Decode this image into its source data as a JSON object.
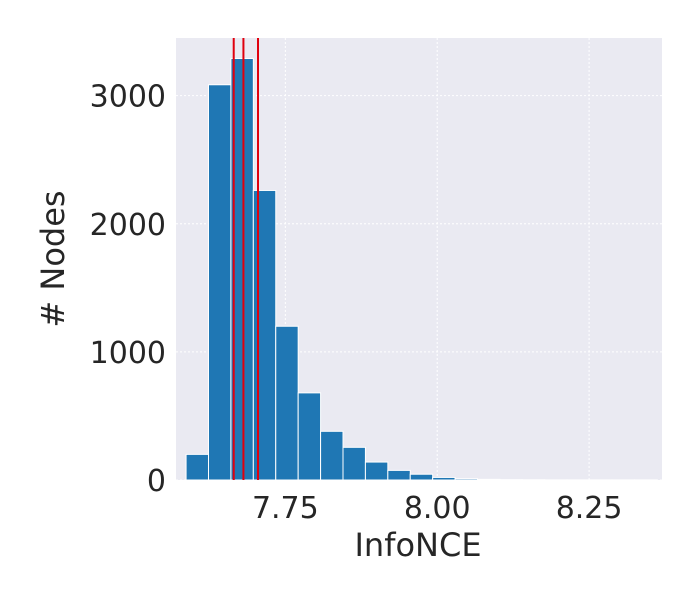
{
  "chart_data": {
    "type": "bar",
    "style": "histogram",
    "title": "",
    "xlabel": "InfoNCE",
    "ylabel": "# Nodes",
    "xlim": [
      7.57,
      8.37
    ],
    "ylim": [
      0,
      3450
    ],
    "grid": true,
    "bin_width": 0.0369,
    "bins": [
      {
        "start": 7.5866,
        "count": 200
      },
      {
        "start": 7.6235,
        "count": 3085
      },
      {
        "start": 7.6604,
        "count": 3290
      },
      {
        "start": 7.6973,
        "count": 2260
      },
      {
        "start": 7.7342,
        "count": 1200
      },
      {
        "start": 7.7711,
        "count": 680
      },
      {
        "start": 7.808,
        "count": 380
      },
      {
        "start": 7.8449,
        "count": 255
      },
      {
        "start": 7.8818,
        "count": 140
      },
      {
        "start": 7.9187,
        "count": 75
      },
      {
        "start": 7.9556,
        "count": 45
      },
      {
        "start": 7.9925,
        "count": 20
      },
      {
        "start": 8.0294,
        "count": 10
      },
      {
        "start": 8.0663,
        "count": 5
      },
      {
        "start": 8.1032,
        "count": 3
      },
      {
        "start": 8.1401,
        "count": 2
      },
      {
        "start": 8.177,
        "count": 1
      },
      {
        "start": 8.2139,
        "count": 1
      },
      {
        "start": 8.2508,
        "count": 1
      },
      {
        "start": 8.2877,
        "count": 1
      },
      {
        "start": 8.3246,
        "count": 1
      }
    ],
    "x_ticks": [
      {
        "value": 7.75,
        "label": "7.75"
      },
      {
        "value": 8.0,
        "label": "8.00"
      },
      {
        "value": 8.25,
        "label": "8.25"
      }
    ],
    "y_ticks": [
      {
        "value": 0,
        "label": "0"
      },
      {
        "value": 1000,
        "label": "1000"
      },
      {
        "value": 2000,
        "label": "2000"
      },
      {
        "value": 3000,
        "label": "3000"
      }
    ],
    "vertical_lines": [
      7.665,
      7.681,
      7.705
    ],
    "colors": {
      "bar": "#1f77b4",
      "bar_edge": "#ffffff",
      "vline": "#e0000e",
      "plot_background": "#eaeaf2",
      "grid": "#ffffff"
    }
  }
}
